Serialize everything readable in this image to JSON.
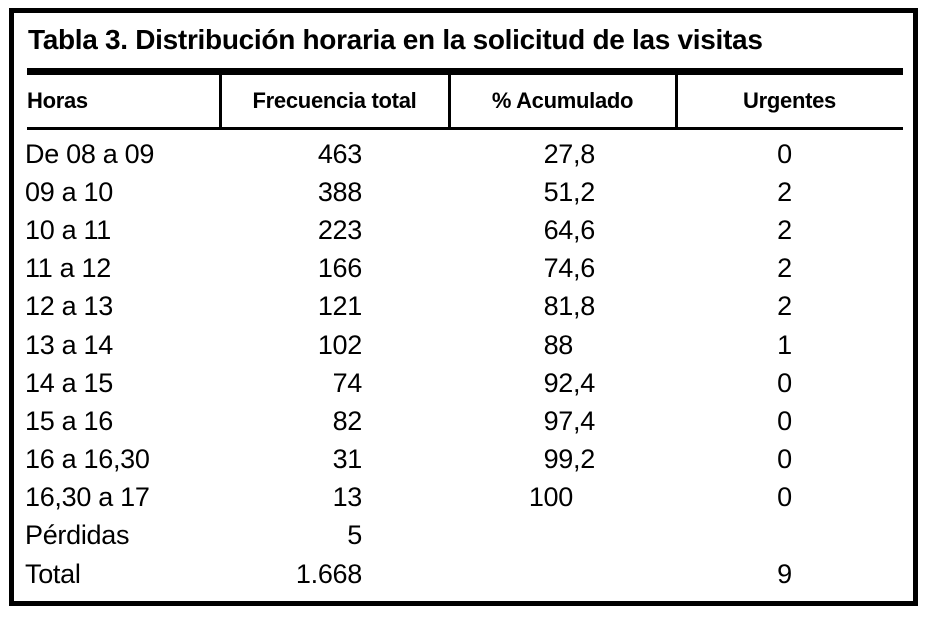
{
  "title": "Tabla 3. Distribución horaria en la solicitud de las visitas",
  "table": {
    "columns": [
      "Horas",
      "Frecuencia total",
      "% Acumulado",
      "Urgentes"
    ],
    "rows": [
      {
        "hours": "De 08 a 09",
        "frequency": "463",
        "cumulative": "27,8",
        "urgent": "0"
      },
      {
        "hours": "09 a 10",
        "frequency": "388",
        "cumulative": "51,2",
        "urgent": "2"
      },
      {
        "hours": "10 a 11",
        "frequency": "223",
        "cumulative": "64,6",
        "urgent": "2"
      },
      {
        "hours": "11 a 12",
        "frequency": "166",
        "cumulative": "74,6",
        "urgent": "2"
      },
      {
        "hours": "12 a 13",
        "frequency": "121",
        "cumulative": "81,8",
        "urgent": "2"
      },
      {
        "hours": "13 a 14",
        "frequency": "102",
        "cumulative": "88",
        "urgent": "1"
      },
      {
        "hours": "14 a 15",
        "frequency": "74",
        "cumulative": "92,4",
        "urgent": "0"
      },
      {
        "hours": "15 a 16",
        "frequency": "82",
        "cumulative": "97,4",
        "urgent": "0"
      },
      {
        "hours": "16 a 16,30",
        "frequency": "31",
        "cumulative": "99,2",
        "urgent": "0"
      },
      {
        "hours": "16,30 a 17",
        "frequency": "13",
        "cumulative": "100",
        "urgent": "0"
      },
      {
        "hours": "Pérdidas",
        "frequency": "5",
        "cumulative": "",
        "urgent": ""
      },
      {
        "hours": "Total",
        "frequency": "1.668",
        "cumulative": "",
        "urgent": "9"
      }
    ]
  },
  "colors": {
    "text": "#000000",
    "background": "#ffffff",
    "rule": "#000000"
  }
}
